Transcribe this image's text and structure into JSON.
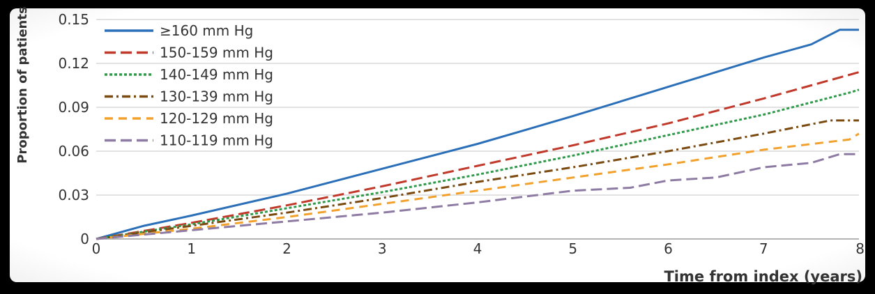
{
  "chart_data": {
    "type": "line",
    "title": "",
    "xlabel": "Time from index (years)",
    "ylabel": "Proportion of patients",
    "xlim": [
      0,
      8
    ],
    "ylim": [
      0,
      0.15
    ],
    "xticks": [
      0,
      1,
      2,
      3,
      4,
      5,
      6,
      7,
      8
    ],
    "xtick_labels": [
      "0",
      "1",
      "2",
      "3",
      "4",
      "5",
      "6",
      "7",
      "8"
    ],
    "yticks": [
      0,
      0.03,
      0.06,
      0.09,
      0.12,
      0.15
    ],
    "ytick_labels": [
      "0",
      "0.03",
      "0.06",
      "0.09",
      "0.12",
      "0.15"
    ],
    "grid": "horizontal",
    "legend_position": "top-left",
    "series": [
      {
        "name": "≥160 mm Hg",
        "color": "#2a6fb8",
        "dash": "solid",
        "x": [
          0,
          0.5,
          1,
          2,
          3,
          4,
          5,
          6,
          6.5,
          7,
          7.5,
          7.8,
          8
        ],
        "y": [
          0,
          0.009,
          0.016,
          0.031,
          0.048,
          0.065,
          0.084,
          0.104,
          0.114,
          0.124,
          0.133,
          0.143,
          0.143
        ]
      },
      {
        "name": "150-159 mm Hg",
        "color": "#c0392b",
        "dash": "long-dash",
        "x": [
          0,
          1,
          2,
          3,
          4,
          5,
          6,
          7,
          8
        ],
        "y": [
          0,
          0.011,
          0.023,
          0.036,
          0.05,
          0.064,
          0.079,
          0.096,
          0.114
        ]
      },
      {
        "name": "140-149 mm Hg",
        "color": "#2e9a4a",
        "dash": "dotted",
        "x": [
          0,
          1,
          2,
          3,
          4,
          5,
          6,
          7,
          7.9,
          8
        ],
        "y": [
          0,
          0.01,
          0.021,
          0.032,
          0.044,
          0.057,
          0.071,
          0.085,
          0.1,
          0.102
        ]
      },
      {
        "name": "130-139 mm Hg",
        "color": "#7a4a10",
        "dash": "dash-dot",
        "x": [
          0,
          1,
          2,
          3,
          4,
          5,
          6,
          7,
          7.7,
          8
        ],
        "y": [
          0,
          0.009,
          0.018,
          0.028,
          0.039,
          0.049,
          0.06,
          0.072,
          0.081,
          0.081
        ]
      },
      {
        "name": "120-129 mm Hg",
        "color": "#f2a12c",
        "dash": "dashed",
        "x": [
          0,
          1,
          2,
          3,
          4,
          5,
          6,
          7,
          7.9,
          8
        ],
        "y": [
          0,
          0.007,
          0.015,
          0.024,
          0.033,
          0.042,
          0.051,
          0.061,
          0.068,
          0.072
        ]
      },
      {
        "name": "110-119 mm Hg",
        "color": "#8e7ba3",
        "dash": "long-dash",
        "x": [
          0,
          1,
          2,
          3,
          4,
          5,
          5.6,
          6,
          6.5,
          7,
          7.5,
          7.8,
          8
        ],
        "y": [
          0,
          0.006,
          0.012,
          0.018,
          0.025,
          0.033,
          0.035,
          0.04,
          0.042,
          0.049,
          0.052,
          0.058,
          0.058
        ]
      }
    ]
  }
}
